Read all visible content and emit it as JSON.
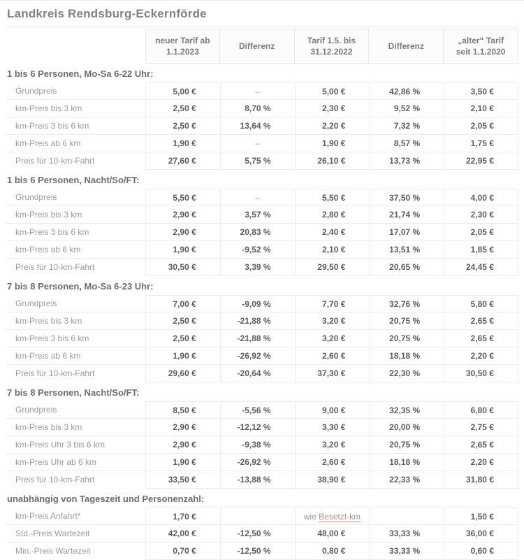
{
  "title": "Landkreis Rendsburg-Eckernförde",
  "header": {
    "columns": [
      "neuer Tarif ab\n1.1.2023",
      "Differenz",
      "Tarif 1.5. bis\n31.12.2022",
      "Differenz",
      "„alter“ Tarif\nseit 1.1.2020"
    ]
  },
  "sections": [
    {
      "title": "1 bis 6 Personen, Mo-Sa 6-22 Uhr:",
      "rows": [
        {
          "label": "Grundpreis",
          "values": [
            "5,00 €",
            "–",
            "5,00 €",
            "42,86 %",
            "3,50 €"
          ]
        },
        {
          "label": "km-Preis bis 3 km",
          "values": [
            "2,50 €",
            "8,70 %",
            "2,30 €",
            "9,52 %",
            "2,10 €"
          ]
        },
        {
          "label": "km-Preis 3 bis 6 km",
          "values": [
            "2,50 €",
            "13,64 %",
            "2,20 €",
            "7,32 %",
            "2,05 €"
          ]
        },
        {
          "label": "km-Preis ab 6 km",
          "values": [
            "1,90 €",
            "–",
            "1,90 €",
            "8,57 %",
            "1,75 €"
          ]
        },
        {
          "label": "Preis für 10-km-Fahrt",
          "values": [
            "27,60 €",
            "5,75 %",
            "26,10 €",
            "13,73 %",
            "22,95 €"
          ]
        }
      ]
    },
    {
      "title": "1 bis 6 Personen, Nacht/So/FT:",
      "rows": [
        {
          "label": "Grundpreis",
          "values": [
            "5,50 €",
            "–",
            "5,50 €",
            "37,50 %",
            "4,00 €"
          ]
        },
        {
          "label": "km-Preis bis 3 km",
          "values": [
            "2,90 €",
            "3,57 %",
            "2,80 €",
            "21,74 %",
            "2,30 €"
          ]
        },
        {
          "label": "km-Preis 3 bis 6 km",
          "values": [
            "2,90 €",
            "20,83 %",
            "2,40 €",
            "17,07 %",
            "2,05 €"
          ]
        },
        {
          "label": "km-Preis ab 6 km",
          "values": [
            "1,90 €",
            "-9,52 %",
            "2,10 €",
            "13,51 %",
            "1,85 €"
          ]
        },
        {
          "label": "Preis für 10-km-Fahrt",
          "values": [
            "30,50 €",
            "3,39 %",
            "29,50 €",
            "20,65 %",
            "24,45 €"
          ]
        }
      ]
    },
    {
      "title": "7 bis 8 Personen, Mo-Sa 6-23 Uhr:",
      "rows": [
        {
          "label": "Grundpreis",
          "values": [
            "7,00 €",
            "-9,09 %",
            "7,70 €",
            "32,76 %",
            "5,80 €"
          ]
        },
        {
          "label": "km-Preis bis 3 km",
          "values": [
            "2,50 €",
            "-21,88 %",
            "3,20 €",
            "20,75 %",
            "2,65 €"
          ]
        },
        {
          "label": "km-Preis 3 bis 6 km",
          "values": [
            "2,50 €",
            "-21,88 %",
            "3,20 €",
            "20,75 %",
            "2,65 €"
          ]
        },
        {
          "label": "km-Preis ab 6 km",
          "values": [
            "1,90 €",
            "-26,92 %",
            "2,60 €",
            "18,18 %",
            "2,20 €"
          ]
        },
        {
          "label": "Preis für 10-km-Fahrt",
          "values": [
            "29,60 €",
            "-20,64 %",
            "37,30 €",
            "22,30 %",
            "30,50 €"
          ]
        }
      ]
    },
    {
      "title": "7 bis 8 Personen, Nacht/So/FT:",
      "rows": [
        {
          "label": "Grundpreis",
          "values": [
            "8,50 €",
            "-5,56 %",
            "9,00 €",
            "32,35 %",
            "6,80 €"
          ]
        },
        {
          "label": "km-Preis bis 3 km",
          "values": [
            "2,90 €",
            "-12,12 %",
            "3,30 €",
            "20,00 %",
            "2,75 €"
          ]
        },
        {
          "label": "km-Preis Uhr 3 bis 6 km",
          "values": [
            "2,90 €",
            "-9,38 %",
            "3,20 €",
            "20,75 %",
            "2,65 €"
          ]
        },
        {
          "label": "km-Preis Uhr ab 6 km",
          "values": [
            "1,90 €",
            "-26,92 %",
            "2,60 €",
            "18,18 %",
            "2,20 €"
          ]
        },
        {
          "label": "Preis für 10-km-Fahrt",
          "values": [
            "33,50 €",
            "-13,88 %",
            "38,90 €",
            "22,33 %",
            "31,80 €"
          ]
        }
      ]
    },
    {
      "title": "unabhängig von Tageszeit und Personenzahl:",
      "rows": [
        {
          "label": "km-Preis Anfahrt*",
          "values": [
            "1,70 €",
            "",
            {
              "text": "wie ",
              "link": "Besetzt-km"
            },
            "",
            "1,50 €"
          ]
        },
        {
          "label": "Std.-Preis Wartezeit",
          "values": [
            "42,00 €",
            "-12,50 %",
            "48,00 €",
            "33,33 %",
            "36,00 €"
          ]
        },
        {
          "label": "Min.-Preis Wartezeit",
          "values": [
            "0,70 €",
            "-12,50 %",
            "0,80 €",
            "33,33 %",
            "0,60 €"
          ]
        }
      ]
    }
  ],
  "colors": {
    "title_text": "#828282",
    "label_text": "#9b9b9b",
    "value_text": "#5d5d5d",
    "border": "#ececec",
    "link_underline": "#e2837a"
  }
}
